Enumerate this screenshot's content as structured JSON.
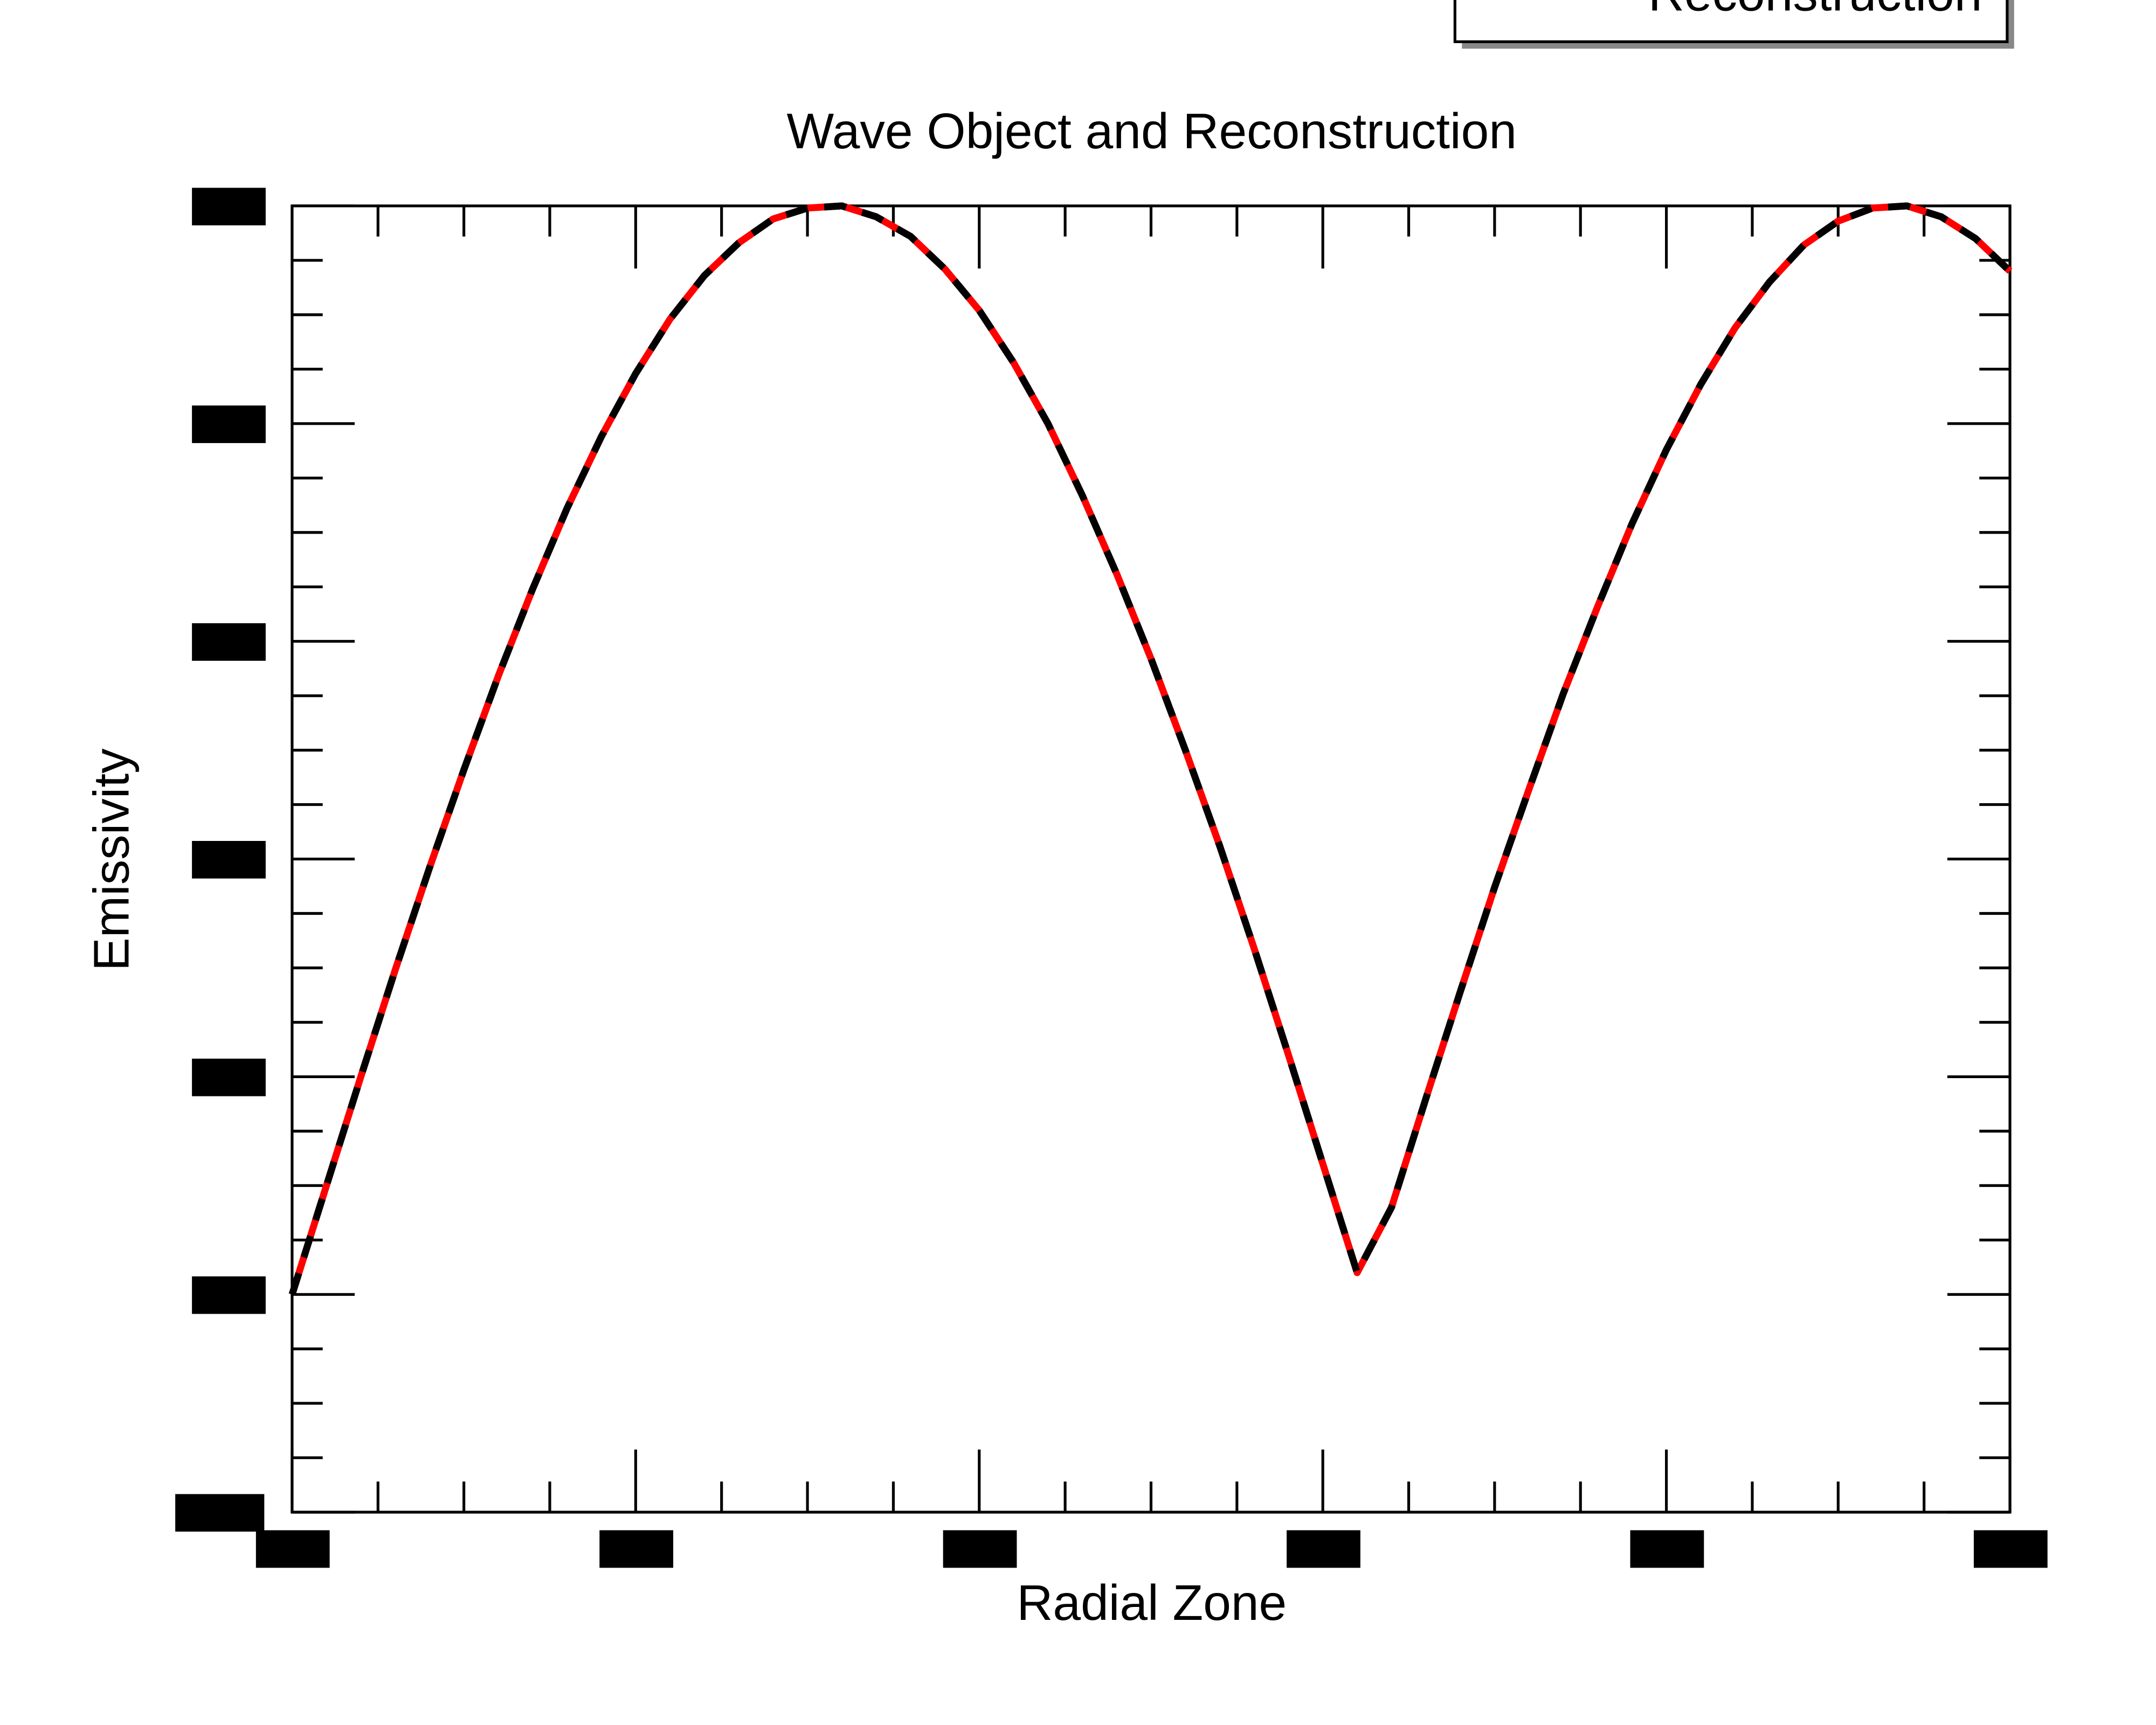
{
  "chart_data": {
    "type": "line",
    "title": "Wave Object and Reconstruction",
    "x_label": "Radial Zone",
    "y_label": "Emissivity",
    "x": [
      0,
      1,
      2,
      3,
      4,
      5,
      6,
      7,
      8,
      9,
      10,
      11,
      12,
      13,
      14,
      15,
      16,
      17,
      18,
      19,
      20,
      21,
      22,
      23,
      24,
      25,
      26,
      27,
      28,
      29,
      30,
      31,
      32,
      33,
      34,
      35,
      36,
      37,
      38,
      39,
      40,
      41,
      42,
      43,
      44,
      45,
      46,
      47,
      48,
      49,
      50
    ],
    "series": [
      {
        "color": "#ff0000",
        "dashed": false,
        "values": [
          1.0,
          1.5,
          2.0,
          2.49,
          2.96,
          3.41,
          3.84,
          4.24,
          4.61,
          4.94,
          5.23,
          5.48,
          5.68,
          5.83,
          5.94,
          5.99,
          6.0,
          5.95,
          5.86,
          5.71,
          5.52,
          5.28,
          5.0,
          4.67,
          4.31,
          3.92,
          3.5,
          3.06,
          2.59,
          2.1,
          1.6,
          1.1,
          1.4,
          1.9,
          2.39,
          2.87,
          3.32,
          3.76,
          4.16,
          4.54,
          4.88,
          5.18,
          5.44,
          5.65,
          5.82,
          5.93,
          5.99,
          6.0,
          5.95,
          5.85,
          5.7
        ]
      },
      {
        "name": "Reconstruction",
        "color": "#000000",
        "dashed": true,
        "values": [
          1.0,
          1.5,
          2.0,
          2.49,
          2.96,
          3.41,
          3.84,
          4.24,
          4.61,
          4.94,
          5.23,
          5.48,
          5.68,
          5.83,
          5.94,
          5.99,
          6.0,
          5.95,
          5.86,
          5.71,
          5.52,
          5.28,
          5.0,
          4.67,
          4.31,
          3.92,
          3.5,
          3.06,
          2.59,
          2.1,
          1.6,
          1.1,
          1.4,
          1.9,
          2.39,
          2.87,
          3.32,
          3.76,
          4.16,
          4.54,
          4.88,
          5.18,
          5.44,
          5.65,
          5.82,
          5.93,
          5.99,
          6.0,
          5.95,
          5.85,
          5.7
        ]
      }
    ],
    "xlim": [
      0,
      50
    ],
    "xticks": [
      0,
      10,
      20,
      30,
      40,
      50
    ],
    "x_minor_ticks": [
      2.5,
      5,
      7.5,
      12.5,
      15,
      17.5,
      22.5,
      25,
      27.5,
      32.5,
      35,
      37.5,
      42.5,
      45,
      47.5
    ],
    "ylim": [
      0,
      6
    ],
    "yticks": [
      0,
      1,
      2,
      3,
      4,
      5,
      6
    ],
    "y_minor_ticks": [
      0.25,
      0.5,
      0.75,
      1.25,
      1.5,
      1.75,
      2.25,
      2.5,
      2.75,
      3.25,
      3.5,
      3.75,
      4.25,
      4.5,
      4.75,
      5.25,
      5.5,
      5.75
    ],
    "grid": false,
    "legend": "top-right"
  }
}
